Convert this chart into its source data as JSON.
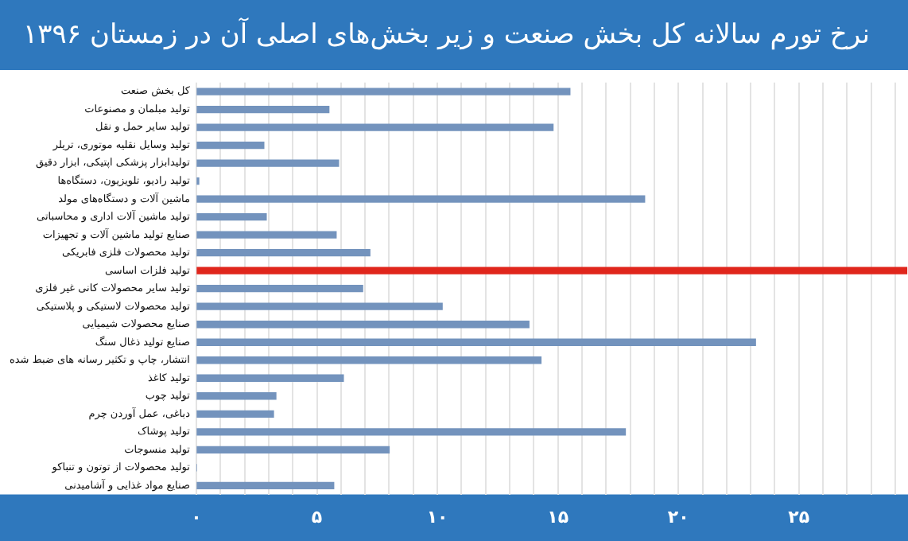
{
  "chart_data": {
    "type": "bar",
    "orientation": "horizontal",
    "title": "نرخ تورم سالانه کل بخش صنعت و زیر بخش‌های اصلی آن در زمستان ۱۳۹۶",
    "categories": [
      "کل بخش صنعت",
      "تولید مبلمان و مصنوعات",
      "تولید سایر حمل و نقل",
      "تولید وسایل نقلیه موتوری، تریلر",
      "تولیدابزار پزشکی اپتیکی، ابزار دقیق",
      "تولید رادیو، تلویزیون، دستگاه‌ها",
      "ماشین آلات و دستگاه‌های مولد",
      "تولید ماشین آلات اداری و محاسباتی",
      "صنایع تولید ماشین آلات و تجهیزات",
      "تولید محصولات فلزی فابریکی",
      "تولید فلزات اساسی",
      "تولید سایر محصولات کانی غیر فلزی",
      "تولید محصولات لاستیکی و پلاستیکی",
      "صنایع محصولات شیمیایی",
      "صنایع تولید ذغال سنگ",
      "انتشار، چاپ و تکثیر رسانه های ضبط شده",
      "تولید کاغذ",
      "تولید چوب",
      "دباغی، عمل آوردن چرم",
      "تولید پوشاک",
      "تولید منسوجات",
      "تولید محصولات از توتون و تنباکو",
      "صنایع مواد غذایی و آشامیدنی"
    ],
    "values": [
      15.5,
      5.5,
      14.8,
      2.8,
      5.9,
      0.1,
      18.6,
      2.9,
      5.8,
      7.2,
      29.5,
      6.9,
      10.2,
      13.8,
      23.2,
      14.3,
      6.1,
      3.3,
      3.2,
      17.8,
      8.0,
      0,
      5.7
    ],
    "colors": [
      "#7393bd",
      "#7393bd",
      "#7393bd",
      "#7393bd",
      "#7393bd",
      "#7393bd",
      "#7393bd",
      "#7393bd",
      "#7393bd",
      "#7393bd",
      "#e0261c",
      "#7393bd",
      "#7393bd",
      "#7393bd",
      "#7393bd",
      "#7393bd",
      "#7393bd",
      "#7393bd",
      "#7393bd",
      "#7393bd",
      "#7393bd",
      "#7393bd",
      "#7393bd"
    ],
    "xlim": [
      0,
      29.5
    ],
    "xticks": [
      {
        "value": 0,
        "label": "۰"
      },
      {
        "value": 1,
        "label": null
      },
      {
        "value": 2,
        "label": null
      },
      {
        "value": 3,
        "label": null
      },
      {
        "value": 4,
        "label": null
      },
      {
        "value": 5,
        "label": "۵"
      },
      {
        "value": 6,
        "label": null
      },
      {
        "value": 7,
        "label": null
      },
      {
        "value": 8,
        "label": null
      },
      {
        "value": 9,
        "label": null
      },
      {
        "value": 10,
        "label": "۱۰"
      },
      {
        "value": 11,
        "label": null
      },
      {
        "value": 12,
        "label": null
      },
      {
        "value": 13,
        "label": null
      },
      {
        "value": 14,
        "label": null
      },
      {
        "value": 15,
        "label": "۱۵"
      },
      {
        "value": 16,
        "label": null
      },
      {
        "value": 17,
        "label": null
      },
      {
        "value": 18,
        "label": null
      },
      {
        "value": 19,
        "label": null
      },
      {
        "value": 20,
        "label": "۲۰"
      },
      {
        "value": 21,
        "label": null
      },
      {
        "value": 22,
        "label": null
      },
      {
        "value": 23,
        "label": null
      },
      {
        "value": 24,
        "label": null
      },
      {
        "value": 25,
        "label": "۲۵"
      },
      {
        "value": 26,
        "label": null
      },
      {
        "value": 27,
        "label": null
      },
      {
        "value": 28,
        "label": null
      },
      {
        "value": 29,
        "label": null
      }
    ],
    "grid": "x",
    "legend": false
  }
}
